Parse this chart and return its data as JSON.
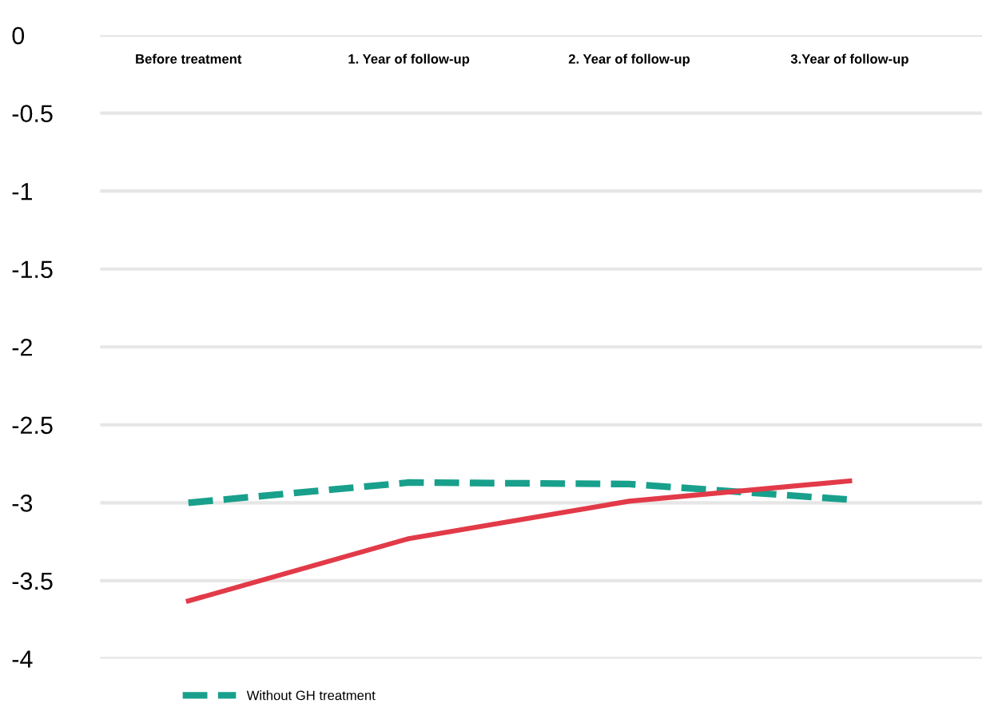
{
  "chart_data": {
    "type": "line",
    "categories": [
      "Before treatment",
      "1. Year of follow-up",
      "2. Year of follow-up",
      "3.Year of follow-up"
    ],
    "series": [
      {
        "name": "Without GH treatment",
        "color": "#18a08c",
        "values": [
          -3.0,
          -2.87,
          -2.88,
          -2.98
        ],
        "line_style": "dashed"
      },
      {
        "color": "#e23a48",
        "values": [
          -3.63,
          -3.23,
          -2.99,
          -2.86
        ],
        "line_style": "solid"
      }
    ],
    "ylim": [
      -4,
      0
    ],
    "yticks": [
      0,
      -0.5,
      -1,
      -1.5,
      -2,
      -2.5,
      -3,
      -3.5,
      -4
    ],
    "grid": "y",
    "legend": "bottom left",
    "marker": "none"
  }
}
